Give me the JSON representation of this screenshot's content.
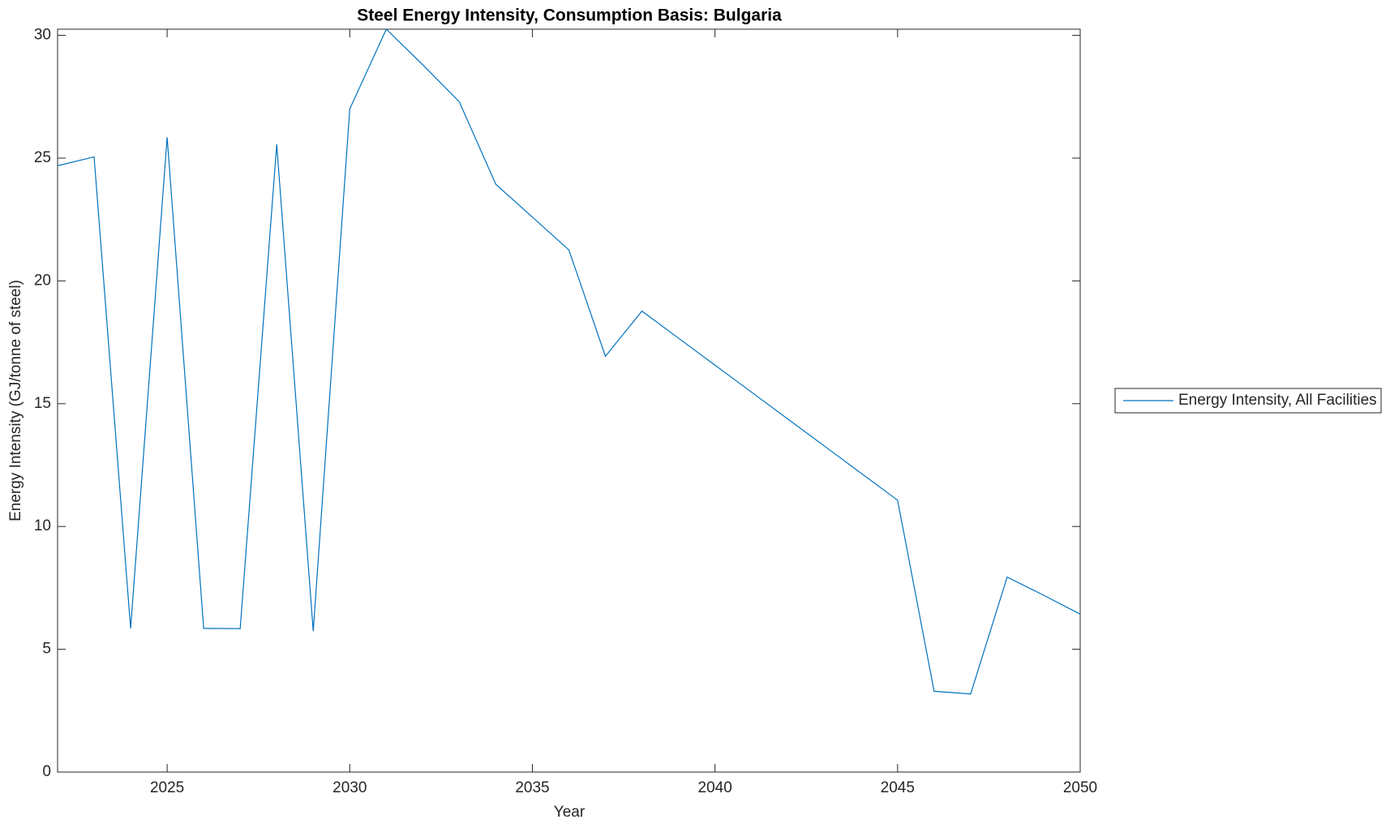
{
  "chart_data": {
    "type": "line",
    "title": "Steel Energy Intensity, Consumption Basis: Bulgaria",
    "x_label": "Year",
    "y_label": "Energy Intensity (GJ/tonne of steel)",
    "x": [
      2022,
      2023,
      2024,
      2025,
      2026,
      2027,
      2028,
      2029,
      2030,
      2031,
      2032,
      2033,
      2034,
      2035,
      2036,
      2037,
      2038,
      2039,
      2040,
      2041,
      2042,
      2043,
      2044,
      2045,
      2046,
      2047,
      2048,
      2049,
      2050
    ],
    "series": [
      {
        "name": "Energy Intensity, All Facilities",
        "color": "#0072bd",
        "values": [
          24.69,
          25.05,
          5.85,
          25.85,
          5.85,
          5.84,
          25.56,
          5.74,
          27.0,
          30.25,
          28.8,
          27.29,
          23.93,
          22.6,
          21.26,
          16.93,
          18.77,
          17.67,
          16.57,
          15.47,
          14.37,
          13.27,
          12.17,
          11.07,
          3.29,
          3.18,
          7.94,
          7.2,
          6.43
        ]
      }
    ],
    "xlim": [
      2022,
      2050
    ],
    "xticks": [
      2025,
      2030,
      2035,
      2040,
      2045,
      2050
    ],
    "ylim": [
      0,
      30.25
    ],
    "yticks": [
      0,
      5,
      10,
      15,
      20,
      25,
      30
    ],
    "grid": false,
    "legend": "right"
  }
}
